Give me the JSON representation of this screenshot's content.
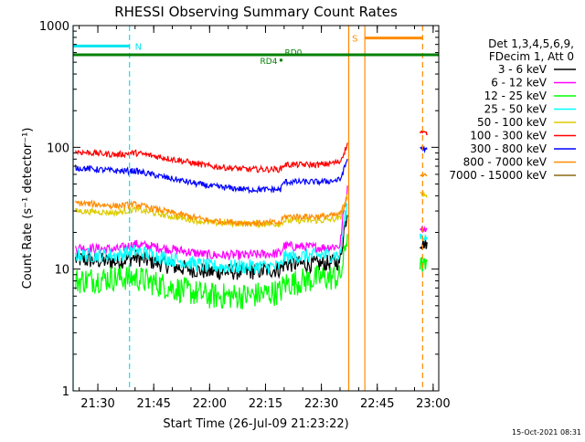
{
  "chart_data": {
    "type": "line",
    "title": "RHESSI Observing Summary Count Rates",
    "xlabel": "Start Time (26-Jul-09 21:23:22)",
    "ylabel": "Count Rate (s⁻¹ detector⁻¹)",
    "y_scale": "log",
    "ylim": [
      1,
      1000
    ],
    "xlim": [
      "21:23:22",
      "23:01:30"
    ],
    "grid": false,
    "legend_position": "right",
    "legend_header": [
      "Det 1,3,4,5,6,9,",
      "FDecim 1, Att 0"
    ],
    "footer_date": "15-Oct-2021 08:31",
    "x_ticks": [
      "21:30",
      "21:45",
      "22:00",
      "22:15",
      "22:30",
      "22:45",
      "23:00"
    ],
    "y_ticks": [
      "1",
      "10",
      "100",
      "1000"
    ],
    "markers": [
      {
        "label": "N",
        "from": "21:23:22",
        "to": "21:38:30",
        "color": "#00e5ee"
      },
      {
        "label": "S",
        "from": "22:41:40",
        "to": "22:57:10",
        "color": "#ff8c00"
      },
      {
        "label": "RD4",
        "time": "22:19:10",
        "color": "#008000"
      },
      {
        "label": "RD0",
        "time": "22:19:10",
        "color": "#008000"
      }
    ],
    "data_gaps": [
      {
        "from": "22:37:20",
        "to": "22:56:10"
      }
    ],
    "series": [
      {
        "name": "3 - 6 keV",
        "color": "#000000",
        "points": [
          [
            "21:24",
            12
          ],
          [
            "21:35",
            11.5
          ],
          [
            "21:40",
            12.5
          ],
          [
            "21:50",
            10.5
          ],
          [
            "22:00",
            9.5
          ],
          [
            "22:10",
            9.5
          ],
          [
            "22:19",
            10
          ],
          [
            "22:20",
            11
          ],
          [
            "22:30",
            11
          ],
          [
            "22:35",
            11.5
          ],
          [
            "22:36",
            20
          ],
          [
            "22:37",
            30
          ]
        ],
        "after_gap": [
          [
            "22:56:30",
            16
          ],
          [
            "22:58:20",
            16
          ]
        ]
      },
      {
        "name": "6 - 12 keV",
        "color": "#ff00ff",
        "points": [
          [
            "21:24",
            15
          ],
          [
            "21:35",
            14.5
          ],
          [
            "21:40",
            16
          ],
          [
            "21:50",
            14.5
          ],
          [
            "22:00",
            13
          ],
          [
            "22:10",
            13
          ],
          [
            "22:19",
            13.5
          ],
          [
            "22:20",
            15.5
          ],
          [
            "22:30",
            15
          ],
          [
            "22:35",
            15.5
          ],
          [
            "22:36",
            30
          ],
          [
            "22:37",
            45
          ]
        ],
        "after_gap": [
          [
            "22:56:30",
            22
          ],
          [
            "22:58:20",
            21
          ]
        ]
      },
      {
        "name": "12 - 25 keV",
        "color": "#00ff00",
        "points": [
          [
            "21:24",
            8
          ],
          [
            "21:35",
            8.5
          ],
          [
            "21:40",
            8.5
          ],
          [
            "21:50",
            7
          ],
          [
            "22:00",
            6
          ],
          [
            "22:10",
            6
          ],
          [
            "22:19",
            6.5
          ],
          [
            "22:20",
            7.5
          ],
          [
            "22:30",
            8.5
          ],
          [
            "22:35",
            8.5
          ],
          [
            "22:36",
            12
          ],
          [
            "22:37",
            20
          ]
        ],
        "after_gap": [
          [
            "22:56:30",
            11
          ],
          [
            "22:58:20",
            10.5
          ]
        ]
      },
      {
        "name": "25 - 50 keV",
        "color": "#00ffff",
        "points": [
          [
            "21:24",
            13
          ],
          [
            "21:35",
            13
          ],
          [
            "21:40",
            14
          ],
          [
            "21:50",
            12
          ],
          [
            "22:00",
            10.5
          ],
          [
            "22:10",
            10.5
          ],
          [
            "22:19",
            10.5
          ],
          [
            "22:20",
            12.5
          ],
          [
            "22:30",
            13
          ],
          [
            "22:35",
            13
          ],
          [
            "22:36",
            22
          ],
          [
            "22:37",
            35
          ]
        ],
        "after_gap": [
          [
            "22:56:30",
            19
          ],
          [
            "22:58:20",
            18
          ]
        ]
      },
      {
        "name": "50 - 100 keV",
        "color": "#ddcc00",
        "points": [
          [
            "21:24",
            30
          ],
          [
            "21:35",
            29
          ],
          [
            "21:40",
            31
          ],
          [
            "21:50",
            27
          ],
          [
            "22:00",
            24
          ],
          [
            "22:10",
            23.5
          ],
          [
            "22:19",
            23.5
          ],
          [
            "22:20",
            25
          ],
          [
            "22:30",
            25
          ],
          [
            "22:35",
            26
          ],
          [
            "22:36",
            32
          ],
          [
            "22:37",
            40
          ]
        ],
        "after_gap": [
          [
            "22:56:30",
            42
          ],
          [
            "22:58:20",
            40
          ]
        ]
      },
      {
        "name": "100 - 300 keV",
        "color": "#ff0000",
        "points": [
          [
            "21:24",
            92
          ],
          [
            "21:35",
            87
          ],
          [
            "21:40",
            90
          ],
          [
            "21:50",
            80
          ],
          [
            "22:00",
            70
          ],
          [
            "22:10",
            66
          ],
          [
            "22:19",
            66
          ],
          [
            "22:20",
            72
          ],
          [
            "22:30",
            72
          ],
          [
            "22:35",
            76
          ],
          [
            "22:36",
            90
          ],
          [
            "22:37",
            105
          ]
        ],
        "after_gap": [
          [
            "22:56:30",
            135
          ],
          [
            "22:58:20",
            130
          ]
        ]
      },
      {
        "name": "300 - 800 keV",
        "color": "#0000ff",
        "points": [
          [
            "21:24",
            68
          ],
          [
            "21:35",
            64
          ],
          [
            "21:40",
            64
          ],
          [
            "21:50",
            55
          ],
          [
            "22:00",
            48
          ],
          [
            "22:10",
            45
          ],
          [
            "22:19",
            45
          ],
          [
            "22:20",
            52
          ],
          [
            "22:30",
            52
          ],
          [
            "22:35",
            54
          ],
          [
            "22:36",
            65
          ],
          [
            "22:37",
            80
          ]
        ],
        "after_gap": [
          [
            "22:56:30",
            100
          ],
          [
            "22:58:20",
            95
          ]
        ]
      },
      {
        "name": "800 - 7000 keV",
        "color": "#ff8c00",
        "points": [
          [
            "21:24",
            35
          ],
          [
            "21:35",
            33
          ],
          [
            "21:40",
            34
          ],
          [
            "21:50",
            29
          ],
          [
            "22:00",
            25
          ],
          [
            "22:10",
            24
          ],
          [
            "22:19",
            24
          ],
          [
            "22:20",
            27
          ],
          [
            "22:30",
            27
          ],
          [
            "22:35",
            28
          ],
          [
            "22:36",
            33
          ],
          [
            "22:37",
            40
          ]
        ],
        "after_gap": [
          [
            "22:56:30",
            60
          ],
          [
            "22:58:20",
            58
          ]
        ]
      },
      {
        "name": "7000 - 15000 keV",
        "color": "#8b6914",
        "points": [],
        "after_gap": []
      }
    ]
  }
}
